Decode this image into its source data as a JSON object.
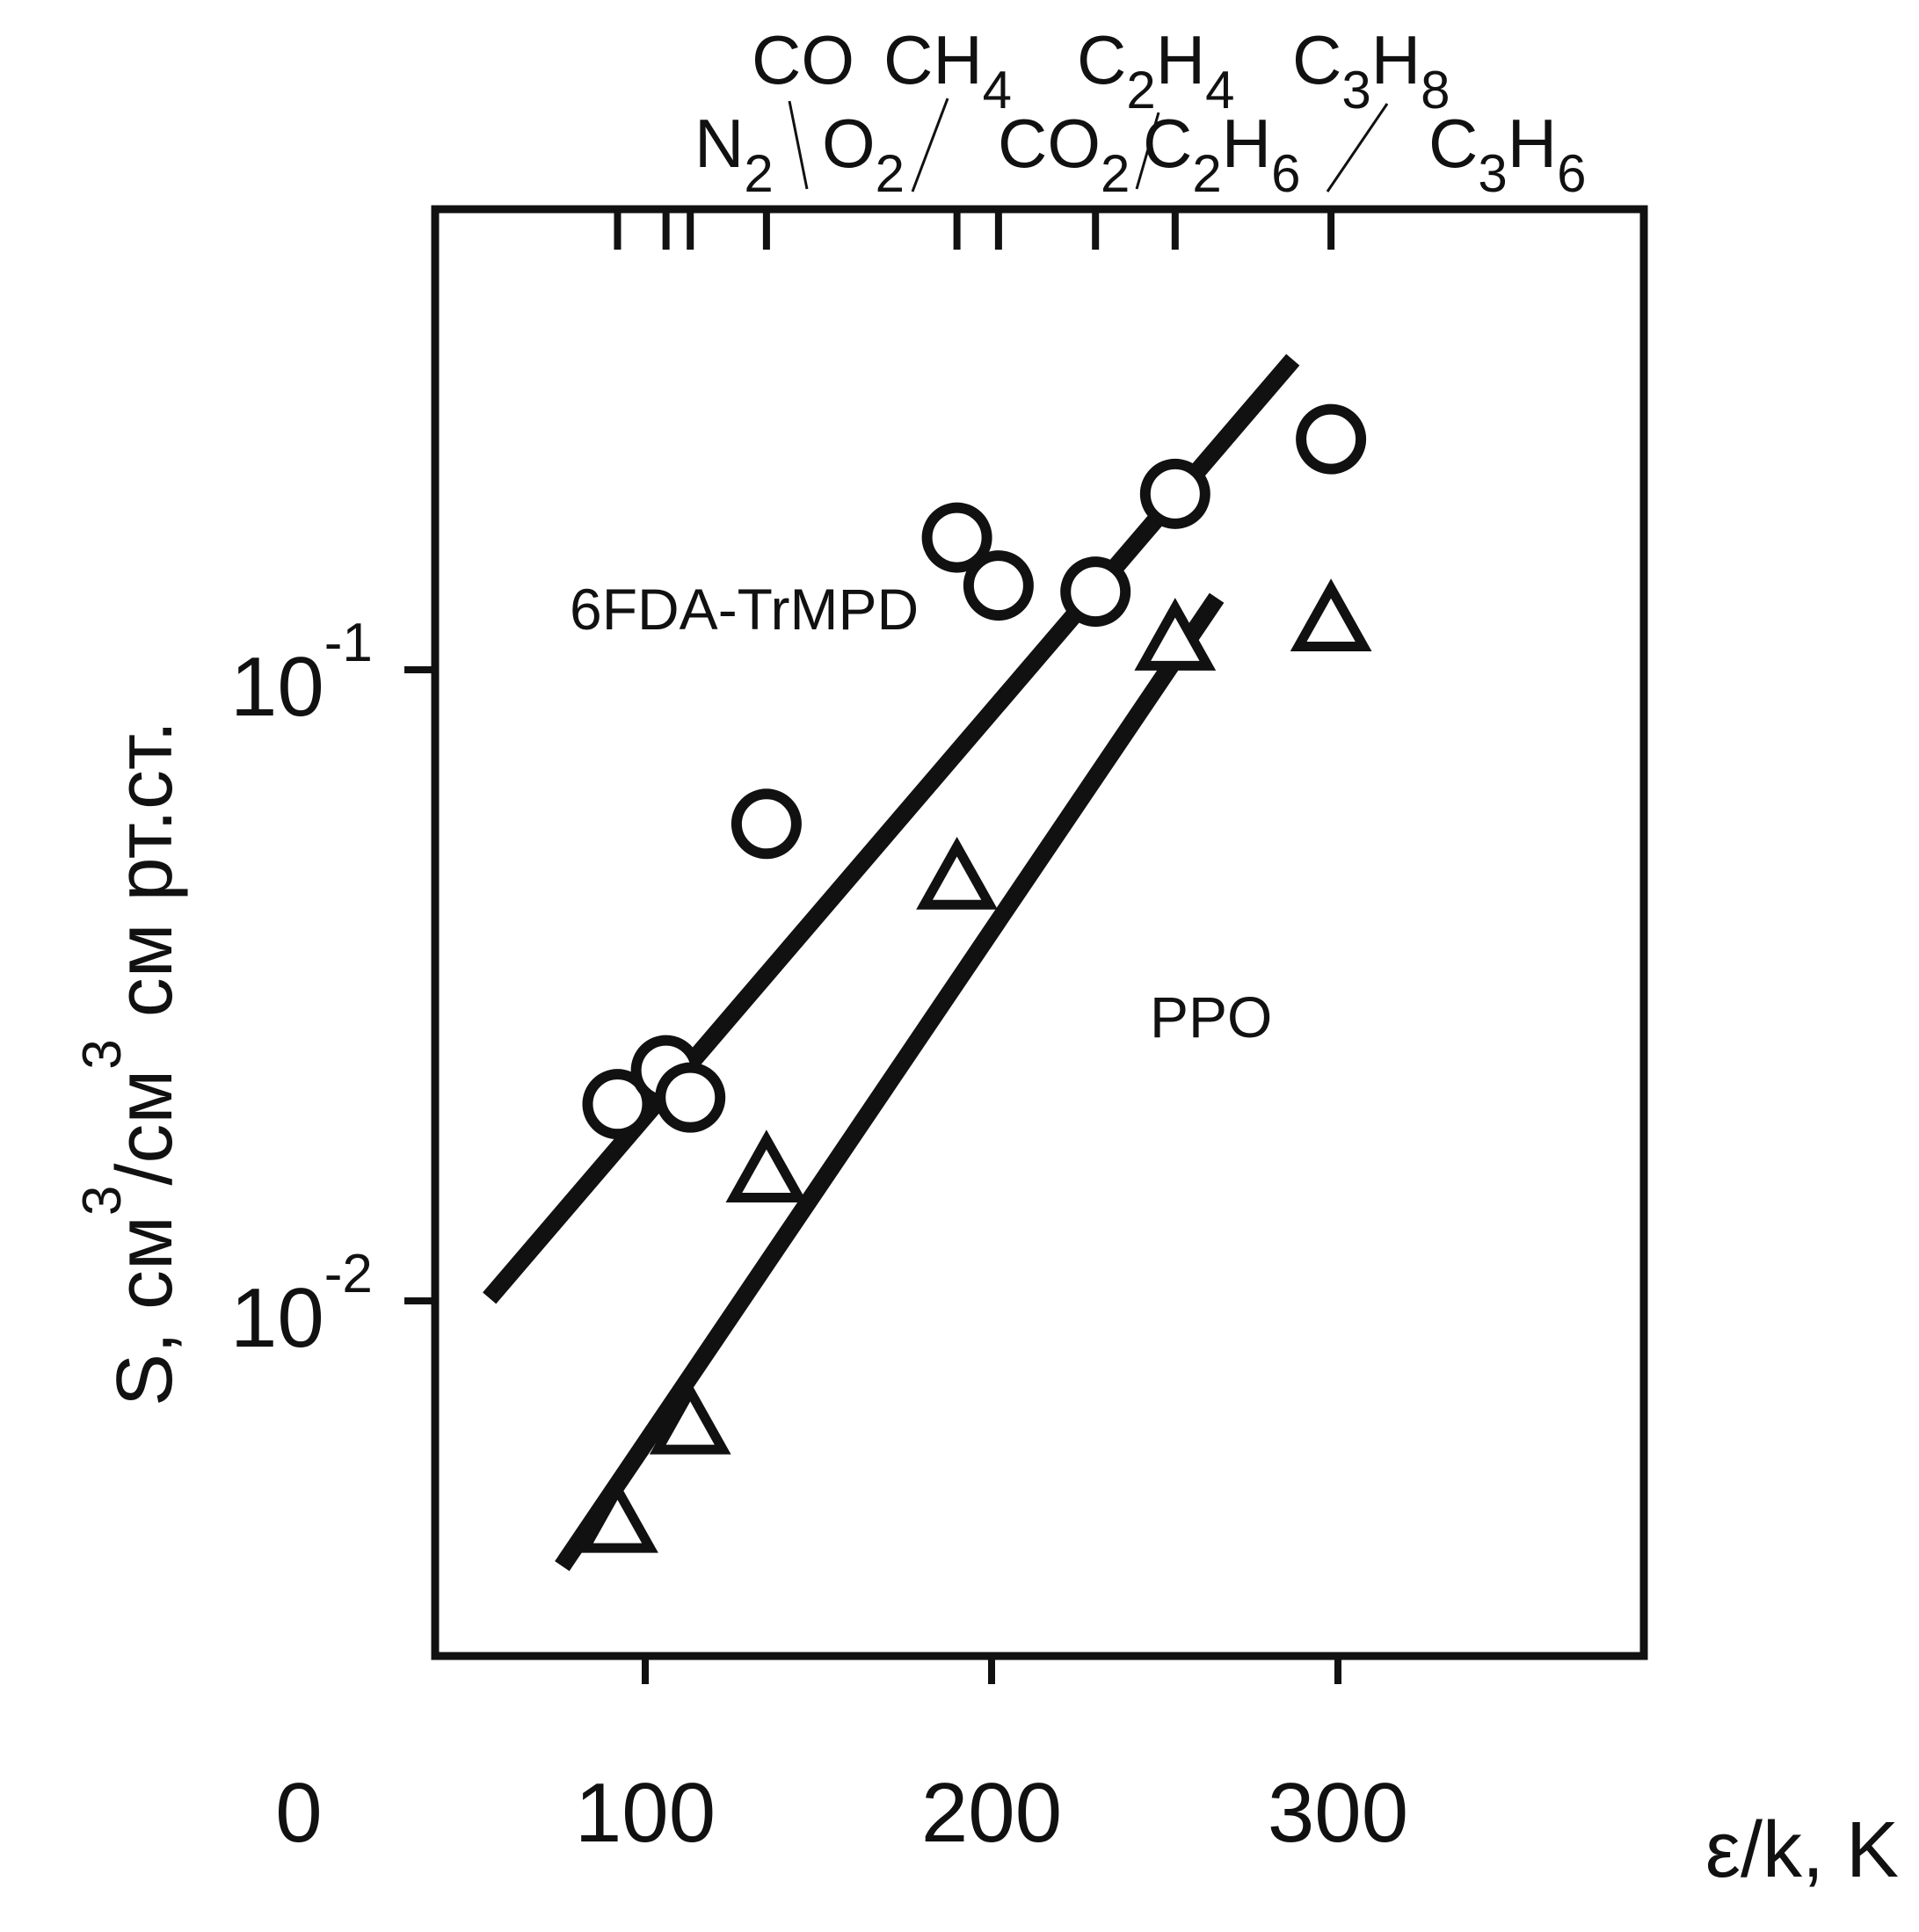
{
  "chart_data": {
    "type": "scatter",
    "xlabel": "ε/k, K",
    "ylabel": "S, см3/см3 см рт.ст.",
    "xlim": [
      0,
      350
    ],
    "ylim": [
      0.0037,
      0.4
    ],
    "yscale": "log",
    "x_ticks": [
      0,
      100,
      200,
      300
    ],
    "x_tick_labels": [
      "0",
      "100",
      "200",
      "300"
    ],
    "y_ticks": [
      {
        "value": 0.1,
        "base": "10",
        "exp": "-1"
      },
      {
        "value": 0.01,
        "base": "10",
        "exp": "-2"
      }
    ],
    "top_axis": [
      {
        "gas": "N",
        "sub": "2",
        "x": 92
      },
      {
        "gas": "CO",
        "sub": "",
        "x": 106
      },
      {
        "gas": "O",
        "sub": "2",
        "x": 113
      },
      {
        "gas": "CH",
        "sub": "4",
        "x": 135
      },
      {
        "gas": "CO",
        "sub": "2",
        "x": 190
      },
      {
        "gas": "C",
        "sub": "2",
        "sub2": "4",
        "mid": "H",
        "x": 202
      },
      {
        "gas": "C",
        "sub": "2",
        "sub2": "6",
        "mid": "H",
        "x": 230
      },
      {
        "gas": "C",
        "sub": "3",
        "sub2": "8",
        "mid": "H",
        "x": 253
      },
      {
        "gas": "C",
        "sub": "3",
        "sub2": "6",
        "mid": "H",
        "x": 298
      }
    ],
    "series": [
      {
        "name": "6FDA-TrMPD",
        "marker": "circle",
        "points": [
          {
            "x": 92,
            "y": 0.0205
          },
          {
            "x": 106,
            "y": 0.0232
          },
          {
            "x": 113,
            "y": 0.021
          },
          {
            "x": 135,
            "y": 0.057
          },
          {
            "x": 190,
            "y": 0.162
          },
          {
            "x": 202,
            "y": 0.136
          },
          {
            "x": 230,
            "y": 0.133
          },
          {
            "x": 253,
            "y": 0.19
          },
          {
            "x": 298,
            "y": 0.232
          }
        ],
        "fit": [
          {
            "x": 55,
            "y": 0.0101
          },
          {
            "x": 287,
            "y": 0.31
          }
        ]
      },
      {
        "name": "PPO",
        "marker": "triangle",
        "points": [
          {
            "x": 92,
            "y": 0.0044
          },
          {
            "x": 113,
            "y": 0.0063
          },
          {
            "x": 135,
            "y": 0.0158
          },
          {
            "x": 190,
            "y": 0.046
          },
          {
            "x": 253,
            "y": 0.11
          },
          {
            "x": 298,
            "y": 0.118
          }
        ],
        "fit": [
          {
            "x": 76,
            "y": 0.0038
          },
          {
            "x": 265,
            "y": 0.13
          }
        ]
      }
    ]
  }
}
